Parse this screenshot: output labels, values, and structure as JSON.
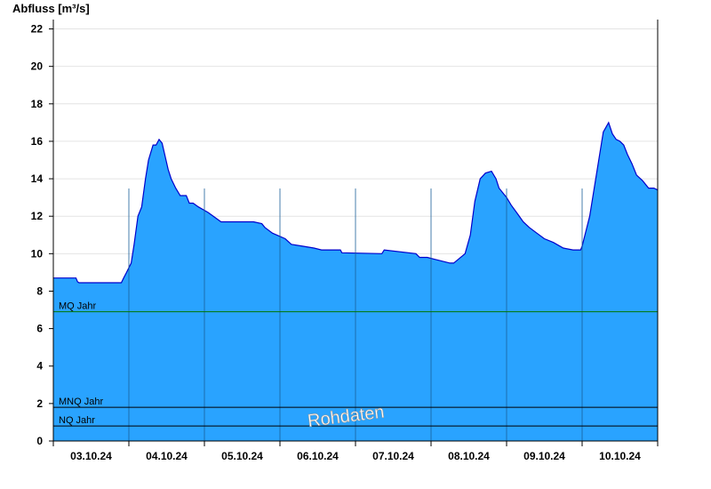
{
  "chart_data": {
    "type": "area",
    "ylabel": "Abfluss [m³/s]",
    "ylim": [
      0,
      22.5
    ],
    "yticks": [
      0,
      2,
      4,
      6,
      8,
      10,
      12,
      14,
      16,
      18,
      20,
      22
    ],
    "xlim": [
      0,
      8
    ],
    "days": [
      "03.10.24",
      "04.10.24",
      "05.10.24",
      "06.10.24",
      "07.10.24",
      "08.10.24",
      "09.10.24",
      "10.10.24"
    ],
    "fill_color": "#29a3ff",
    "line_color": "#0000cc",
    "series": [
      {
        "x": [
          0,
          0.3,
          0.32,
          0.34,
          0.9,
          0.93,
          0.97,
          1.03,
          1.07,
          1.12,
          1.17,
          1.22,
          1.26,
          1.32,
          1.36,
          1.4,
          1.44,
          1.48,
          1.52,
          1.56,
          1.62,
          1.68,
          1.72,
          1.76,
          1.8,
          1.85,
          1.92,
          2.05,
          2.22,
          2.4,
          2.5,
          2.65,
          2.76,
          2.8,
          2.9,
          3.07,
          3.15,
          3.3,
          3.45,
          3.55,
          3.65,
          3.7,
          3.8,
          3.82,
          4.35,
          4.38,
          4.8,
          4.85,
          4.95,
          5.05,
          5.25,
          5.3,
          5.45,
          5.52,
          5.58,
          5.65,
          5.72,
          5.8,
          5.86,
          5.9,
          6.0,
          6.06,
          6.15,
          6.22,
          6.3,
          6.4,
          6.5,
          6.62,
          6.75,
          6.88,
          6.98,
          7.0,
          7.1,
          7.28,
          7.35,
          7.4,
          7.45,
          7.5,
          7.55,
          7.6,
          7.66,
          7.72,
          7.8,
          7.88,
          7.95,
          8.0
        ],
        "y": [
          8.7,
          8.7,
          8.5,
          8.45,
          8.45,
          8.7,
          9.0,
          9.5,
          10.5,
          12.0,
          12.5,
          14.0,
          15.0,
          15.8,
          15.8,
          16.1,
          15.9,
          15.2,
          14.5,
          14.0,
          13.5,
          13.1,
          13.1,
          13.1,
          12.7,
          12.7,
          12.5,
          12.2,
          11.7,
          11.7,
          11.7,
          11.7,
          11.6,
          11.4,
          11.1,
          10.8,
          10.5,
          10.4,
          10.3,
          10.2,
          10.2,
          10.2,
          10.2,
          10.05,
          10.0,
          10.2,
          10.0,
          9.8,
          9.8,
          9.7,
          9.5,
          9.5,
          10.0,
          11.0,
          12.8,
          14.0,
          14.3,
          14.4,
          14.0,
          13.5,
          13.0,
          12.6,
          12.1,
          11.7,
          11.4,
          11.1,
          10.8,
          10.6,
          10.3,
          10.2,
          10.2,
          10.4,
          12.0,
          16.5,
          17.0,
          16.4,
          16.1,
          16.0,
          15.8,
          15.3,
          14.8,
          14.2,
          13.9,
          13.5,
          13.5,
          13.4
        ]
      }
    ],
    "reference_lines": [
      {
        "label": "MQ Jahr",
        "value": 6.9,
        "color": "#007700"
      },
      {
        "label": "MNQ Jahr",
        "value": 1.8,
        "color": "#000000"
      },
      {
        "label": "NQ Jahr",
        "value": 0.8,
        "color": "#000000"
      }
    ],
    "watermark": "Rohdaten"
  }
}
